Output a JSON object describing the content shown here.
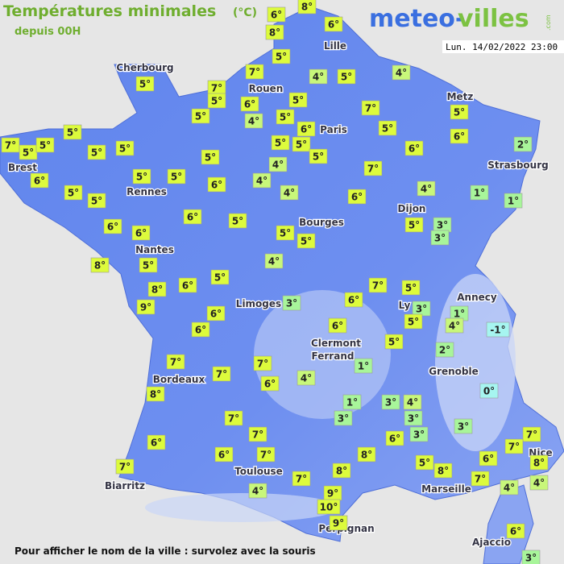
{
  "header": {
    "title": "Températures minimales",
    "unit": "(°C)",
    "subtitle": "depuis 00H",
    "logo": {
      "part1": "meteo-",
      "part2": "villes",
      "suffix": ".com"
    },
    "timestamp": "Lun. 14/02/2022 23:00"
  },
  "cities": [
    "Cherbourg",
    "Lille",
    "Rouen",
    "Metz",
    "Paris",
    "Brest",
    "Strasbourg",
    "Rennes",
    "Dijon",
    "Bourges",
    "Nantes",
    "Annecy",
    "Limoges",
    "Ly",
    "Clermont",
    "Ferrand",
    "Grenoble",
    "Bordeaux",
    "Toulouse",
    "Nice",
    "Biarritz",
    "Marseille",
    "Perpignan",
    "Ajaccio"
  ],
  "temperatures": [
    "8°",
    "6°",
    "8°",
    "6°",
    "5°",
    "4°",
    "7°",
    "4°",
    "5°",
    "7°",
    "5°",
    "6°",
    "4°",
    "5°",
    "5°",
    "7°",
    "5°",
    "6°",
    "5°",
    "5°",
    "6°",
    "2°",
    "7°",
    "5°",
    "5°",
    "5°",
    "5°",
    "5°",
    "5°",
    "6°",
    "5°",
    "5°",
    "5°",
    "5°",
    "4°",
    "7°",
    "6°",
    "5°",
    "5°",
    "5°",
    "5°",
    "6°",
    "4°",
    "4°",
    "6°",
    "4°",
    "1°",
    "1°",
    "6°",
    "5°",
    "6°",
    "6°",
    "5°",
    "5°",
    "5°",
    "3°",
    "3°",
    "8°",
    "5°",
    "4°",
    "5°",
    "6°",
    "8°",
    "9°",
    "7°",
    "5°",
    "6°",
    "3°",
    "3°",
    "1°",
    "4°",
    "5°",
    "-1°",
    "6°",
    "6°",
    "6°",
    "5°",
    "2°",
    "7°",
    "7°",
    "7°",
    "6°",
    "4°",
    "1°",
    "8°",
    "0°",
    "1°",
    "3°",
    "4°",
    "3°",
    "3°",
    "3°",
    "3°",
    "7°",
    "7°",
    "6°",
    "6°",
    "8°",
    "7°",
    "7°",
    "6°",
    "8°",
    "4°",
    "5°",
    "8°",
    "7°",
    "4°",
    "6°",
    "7°",
    "7°",
    "8°",
    "7°",
    "4°",
    "9°",
    "10°",
    "9°",
    "6°",
    "3°"
  ],
  "footer": "Pour afficher le nom de la ville : survolez avec la souris"
}
